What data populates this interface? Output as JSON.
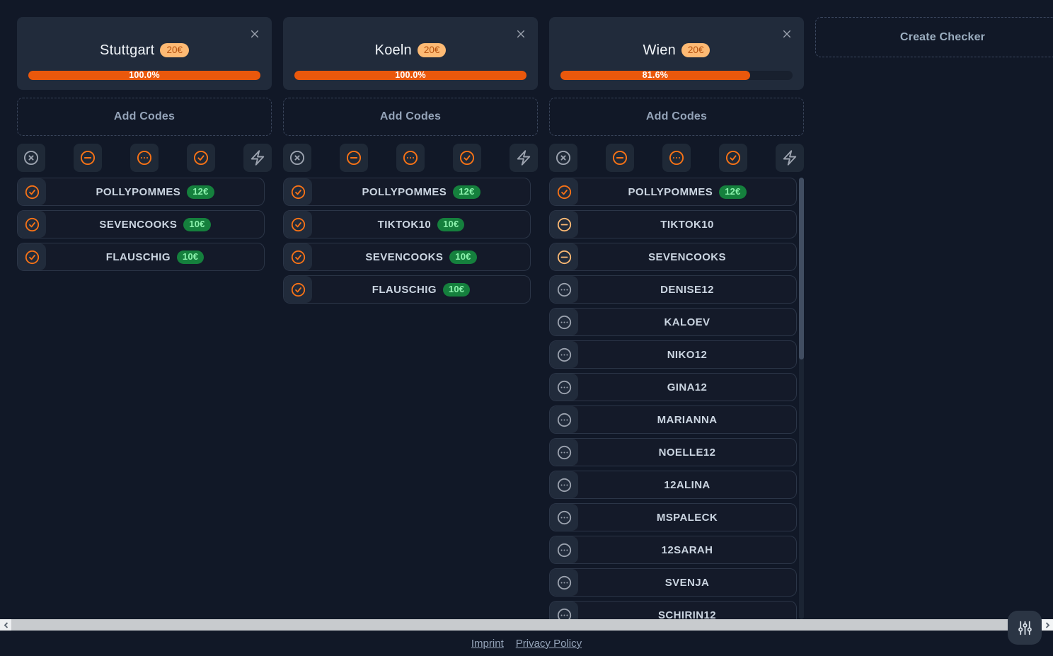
{
  "board": {
    "create_checker_label": "Create Checker",
    "add_codes_label": "Add Codes",
    "toolbar": [
      {
        "name": "filter-invalid",
        "icon": "x-circle",
        "color": "#9ca3af"
      },
      {
        "name": "filter-used",
        "icon": "minus-circle",
        "color": "#f97316"
      },
      {
        "name": "filter-pending",
        "icon": "ellipsis-circle",
        "color": "#f97316"
      },
      {
        "name": "filter-valid",
        "icon": "check-circle",
        "color": "#f97316"
      },
      {
        "name": "run-check",
        "icon": "bolt",
        "color": "#9ca3af"
      }
    ],
    "status_icons": {
      "valid": {
        "icon": "check-circle",
        "color": "#f97316"
      },
      "used": {
        "icon": "minus-circle",
        "color": "#fdba74"
      },
      "pending": {
        "icon": "ellipsis-circle",
        "color": "#9ca3af"
      }
    },
    "columns": [
      {
        "title": "Stuttgart",
        "price_badge": "20€",
        "progress_label": "100.0%",
        "progress_percent": 100.0,
        "codes": [
          {
            "name": "POLLYPOMMES",
            "status": "valid",
            "price": "12€"
          },
          {
            "name": "SEVENCOOKS",
            "status": "valid",
            "price": "10€"
          },
          {
            "name": "FLAUSCHIG",
            "status": "valid",
            "price": "10€"
          }
        ]
      },
      {
        "title": "Koeln",
        "price_badge": "20€",
        "progress_label": "100.0%",
        "progress_percent": 100.0,
        "codes": [
          {
            "name": "POLLYPOMMES",
            "status": "valid",
            "price": "12€"
          },
          {
            "name": "TIKTOK10",
            "status": "valid",
            "price": "10€"
          },
          {
            "name": "SEVENCOOKS",
            "status": "valid",
            "price": "10€"
          },
          {
            "name": "FLAUSCHIG",
            "status": "valid",
            "price": "10€"
          }
        ]
      },
      {
        "title": "Wien",
        "price_badge": "20€",
        "progress_label": "81.6%",
        "progress_percent": 81.6,
        "has_scrollbar": true,
        "codes": [
          {
            "name": "POLLYPOMMES",
            "status": "valid",
            "price": "12€"
          },
          {
            "name": "TIKTOK10",
            "status": "used"
          },
          {
            "name": "SEVENCOOKS",
            "status": "used"
          },
          {
            "name": "DENISE12",
            "status": "pending"
          },
          {
            "name": "KALOEV",
            "status": "pending"
          },
          {
            "name": "NIKO12",
            "status": "pending"
          },
          {
            "name": "GINA12",
            "status": "pending"
          },
          {
            "name": "MARIANNA",
            "status": "pending"
          },
          {
            "name": "NOELLE12",
            "status": "pending"
          },
          {
            "name": "12ALINA",
            "status": "pending"
          },
          {
            "name": "MSPALECK",
            "status": "pending"
          },
          {
            "name": "12SARAH",
            "status": "pending"
          },
          {
            "name": "SVENJA",
            "status": "pending"
          },
          {
            "name": "SCHIRIN12",
            "status": "pending"
          }
        ]
      }
    ]
  },
  "footer": {
    "links": [
      {
        "label": "Imprint"
      },
      {
        "label": "Privacy Policy"
      }
    ]
  },
  "colors": {
    "page_bg": "#111827",
    "card_bg": "#212b3b",
    "progress_fill": "#ea580c",
    "badge_bg": "#fdba74",
    "badge_text": "#b5500d",
    "price_bg": "#15803d",
    "price_text": "#8cf2ad"
  }
}
